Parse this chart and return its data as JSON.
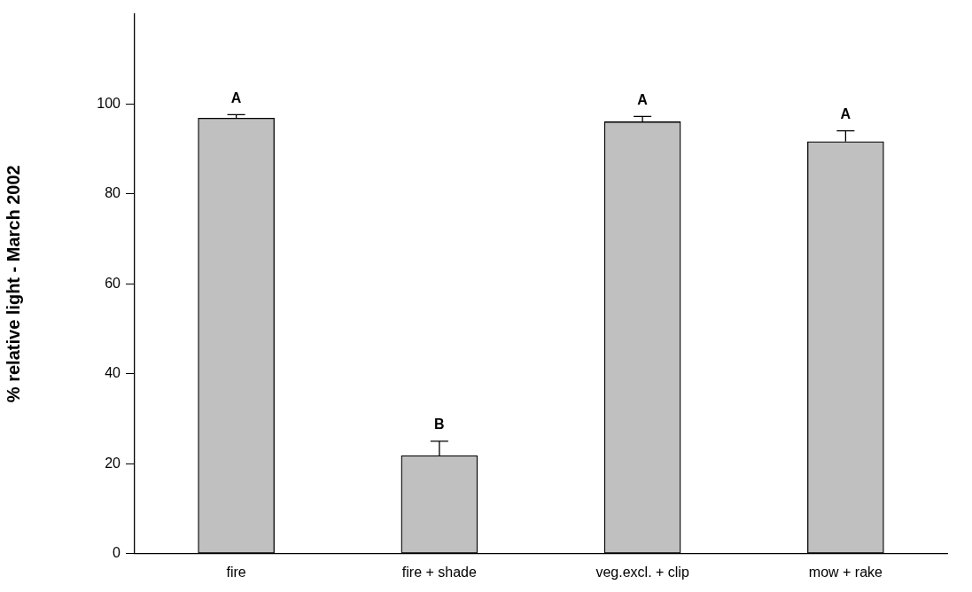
{
  "chart_data": {
    "type": "bar",
    "ylabel": "% relative light - March 2002",
    "categories": [
      "fire",
      "fire + shade",
      "veg.excl. + clip",
      "mow + rake"
    ],
    "values": [
      96.8,
      21.8,
      96.0,
      91.6
    ],
    "errors": [
      0.8,
      3.2,
      1.2,
      2.4
    ],
    "color": "#c0c0c0",
    "ylim": [
      0,
      120
    ],
    "yticks": [
      0,
      20,
      40,
      60,
      80,
      100
    ],
    "grid": false,
    "legend": false,
    "annotations": [
      "A",
      "B",
      "A",
      "A"
    ]
  }
}
